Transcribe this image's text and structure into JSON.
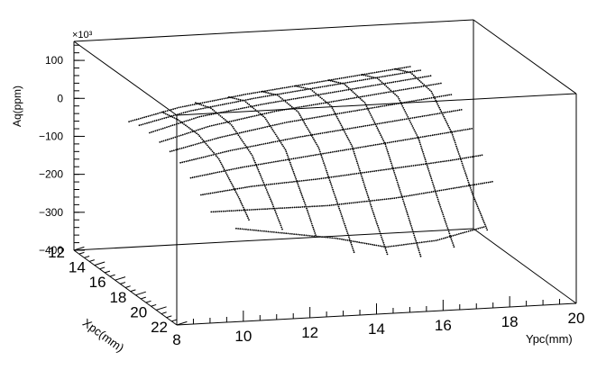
{
  "chart_data": {
    "type": "scatter",
    "projection": "3d-box",
    "grid": false,
    "legend": "none",
    "title": "",
    "xlabel": "Ypc(mm)",
    "ylabel": "Xpc(mm)",
    "zlabel": "Aq(ppm)",
    "z_multiplier": "×10³",
    "xlim": [
      8,
      20
    ],
    "ylim": [
      12,
      22
    ],
    "zlim": [
      -400,
      150
    ],
    "x_ticks": [
      "8",
      "10",
      "12",
      "14",
      "16",
      "18",
      "20"
    ],
    "y_ticks": [
      "12",
      "14",
      "16",
      "18",
      "20",
      "22"
    ],
    "z_ticks": [
      "100",
      "0",
      "−100",
      "−200",
      "−300",
      "−400"
    ],
    "z_tick_values": [
      100,
      0,
      -100,
      -200,
      -300,
      -400
    ],
    "x_tick_values": [
      8,
      10,
      12,
      14,
      16,
      18,
      20
    ],
    "y_tick_values": [
      12,
      14,
      16,
      18,
      20,
      22
    ],
    "series": [
      {
        "description": "scan lines at fixed Ypc (points sampled along Xpc)",
        "scan_lines_ypc": [
          {
            "ypc": 10.5,
            "points": [
              [
                10.5,
                12.5,
                -40
              ],
              [
                10.5,
                14,
                -30
              ],
              [
                10.5,
                16,
                -30
              ],
              [
                10.5,
                18,
                -55
              ],
              [
                10.5,
                20,
                -120
              ],
              [
                10.5,
                21,
                -160
              ]
            ]
          },
          {
            "ypc": 11.5,
            "points": [
              [
                11.5,
                12.5,
                -20
              ],
              [
                11.5,
                14,
                -5
              ],
              [
                11.5,
                16,
                -10
              ],
              [
                11.5,
                18,
                -50
              ],
              [
                11.5,
                20,
                -140
              ],
              [
                11.5,
                21,
                -190
              ]
            ]
          },
          {
            "ypc": 12.5,
            "points": [
              [
                12.5,
                12.5,
                -10
              ],
              [
                12.5,
                14,
                10
              ],
              [
                12.5,
                16,
                5
              ],
              [
                12.5,
                18,
                -40
              ],
              [
                12.5,
                20,
                -150
              ],
              [
                12.5,
                21,
                -210
              ]
            ]
          },
          {
            "ypc": 13.5,
            "points": [
              [
                13.5,
                12.5,
                0
              ],
              [
                13.5,
                14,
                20
              ],
              [
                13.5,
                16,
                15
              ],
              [
                13.5,
                18,
                -40
              ],
              [
                13.5,
                20,
                -160
              ],
              [
                13.5,
                21.5,
                -250
              ]
            ]
          },
          {
            "ypc": 14.5,
            "points": [
              [
                14.5,
                12.5,
                10
              ],
              [
                14.5,
                14,
                30
              ],
              [
                14.5,
                16,
                25
              ],
              [
                14.5,
                18,
                -40
              ],
              [
                14.5,
                20,
                -170
              ],
              [
                14.5,
                21.5,
                -260
              ]
            ]
          },
          {
            "ypc": 15.5,
            "points": [
              [
                15.5,
                12.5,
                20
              ],
              [
                15.5,
                14,
                40
              ],
              [
                15.5,
                16,
                30
              ],
              [
                15.5,
                18,
                -40
              ],
              [
                15.5,
                20,
                -170
              ],
              [
                15.5,
                21.5,
                -270
              ]
            ]
          },
          {
            "ypc": 16.5,
            "points": [
              [
                16.5,
                12.5,
                30
              ],
              [
                16.5,
                14,
                50
              ],
              [
                16.5,
                16,
                40
              ],
              [
                16.5,
                18,
                -30
              ],
              [
                16.5,
                20,
                -160
              ],
              [
                16.5,
                21.5,
                -250
              ]
            ]
          },
          {
            "ypc": 17.5,
            "points": [
              [
                17.5,
                12.5,
                40
              ],
              [
                17.5,
                14,
                60
              ],
              [
                17.5,
                16,
                50
              ],
              [
                17.5,
                18,
                -20
              ],
              [
                17.5,
                20,
                -140
              ],
              [
                17.5,
                21.5,
                -210
              ]
            ]
          }
        ]
      },
      {
        "description": "scan lines at fixed Xpc (points sampled along Ypc)",
        "scan_lines_xpc": [
          {
            "xpc": 12.5,
            "points": [
              [
                9.5,
                12.5,
                -60
              ],
              [
                11,
                12.5,
                -30
              ],
              [
                13,
                12.5,
                -5
              ],
              [
                15,
                12.5,
                15
              ],
              [
                17,
                12.5,
                35
              ],
              [
                18,
                12.5,
                45
              ]
            ]
          },
          {
            "xpc": 13.5,
            "points": [
              [
                9.5,
                13.5,
                -50
              ],
              [
                11,
                13.5,
                -20
              ],
              [
                13,
                13.5,
                5
              ],
              [
                15,
                13.5,
                25
              ],
              [
                17,
                13.5,
                45
              ],
              [
                18,
                13.5,
                55
              ]
            ]
          },
          {
            "xpc": 14.5,
            "points": [
              [
                9.5,
                14.5,
                -50
              ],
              [
                11,
                14.5,
                -15
              ],
              [
                13,
                14.5,
                10
              ],
              [
                15,
                14.5,
                30
              ],
              [
                17,
                14.5,
                50
              ],
              [
                18,
                14.5,
                60
              ]
            ]
          },
          {
            "xpc": 15.5,
            "points": [
              [
                9.5,
                15.5,
                -55
              ],
              [
                11,
                15.5,
                -20
              ],
              [
                13,
                15.5,
                10
              ],
              [
                15,
                15.5,
                30
              ],
              [
                17,
                15.5,
                50
              ],
              [
                18,
                15.5,
                60
              ]
            ]
          },
          {
            "xpc": 16.5,
            "points": [
              [
                9.5,
                16.5,
                -60
              ],
              [
                11,
                16.5,
                -30
              ],
              [
                13,
                16.5,
                0
              ],
              [
                15,
                16.5,
                20
              ],
              [
                17,
                16.5,
                40
              ],
              [
                18,
                16.5,
                50
              ]
            ]
          },
          {
            "xpc": 17.5,
            "points": [
              [
                9.5,
                17.5,
                -70
              ],
              [
                11,
                17.5,
                -45
              ],
              [
                13,
                17.5,
                -20
              ],
              [
                15,
                17.5,
                0
              ],
              [
                17,
                17.5,
                20
              ],
              [
                18,
                17.5,
                30
              ]
            ]
          },
          {
            "xpc": 18.5,
            "points": [
              [
                9.5,
                18.5,
                -90
              ],
              [
                11,
                18.5,
                -70
              ],
              [
                13,
                18.5,
                -50
              ],
              [
                15,
                18.5,
                -30
              ],
              [
                17,
                18.5,
                -10
              ],
              [
                18,
                18.5,
                0
              ]
            ]
          },
          {
            "xpc": 19.5,
            "points": [
              [
                9.5,
                19.5,
                -115
              ],
              [
                11,
                19.5,
                -100
              ],
              [
                13,
                19.5,
                -90
              ],
              [
                15,
                19.5,
                -75
              ],
              [
                17,
                19.5,
                -60
              ],
              [
                18,
                19.5,
                -50
              ]
            ]
          },
          {
            "xpc": 20.5,
            "points": [
              [
                9.5,
                20.5,
                -140
              ],
              [
                11,
                20.5,
                -140
              ],
              [
                13,
                20.5,
                -140
              ],
              [
                15,
                20.5,
                -130
              ],
              [
                17,
                20.5,
                -110
              ],
              [
                18,
                20.5,
                -100
              ]
            ]
          },
          {
            "xpc": 21.3,
            "points": [
              [
                10,
                21.3,
                -170
              ],
              [
                11.5,
                21.3,
                -190
              ],
              [
                13,
                21.3,
                -210
              ],
              [
                14.5,
                21.3,
                -240
              ],
              [
                16,
                21.3,
                -230
              ],
              [
                17.5,
                21.3,
                -200
              ]
            ]
          }
        ]
      }
    ]
  }
}
